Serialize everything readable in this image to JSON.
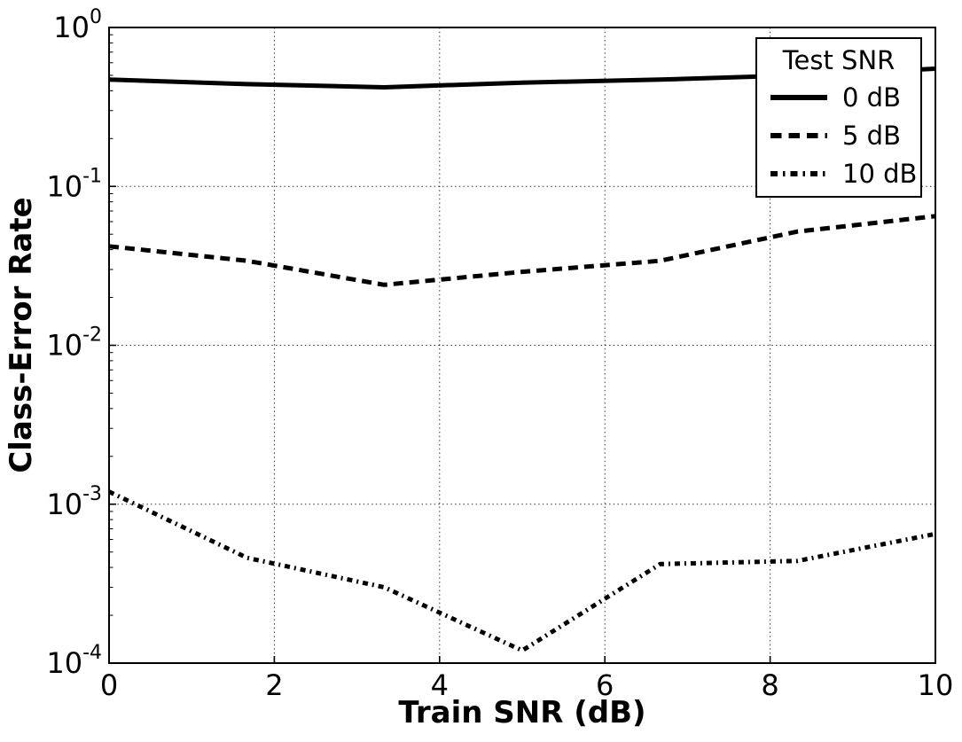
{
  "figure": {
    "background": "#ffffff",
    "line_color": "#000000",
    "grid_style": "dotted"
  },
  "chart_data": {
    "type": "line",
    "title": "",
    "xlabel": "Train SNR (dB)",
    "ylabel": "Class-Error Rate",
    "xscale": "linear",
    "yscale": "log",
    "xlim": [
      0,
      10
    ],
    "ylim": [
      0.0001,
      1
    ],
    "xticks": [
      0,
      2,
      4,
      6,
      8,
      10
    ],
    "yticks": [
      {
        "base": "10",
        "exp": "0"
      },
      {
        "base": "10",
        "exp": "-1"
      },
      {
        "base": "10",
        "exp": "-2"
      },
      {
        "base": "10",
        "exp": "-3"
      },
      {
        "base": "10",
        "exp": "-4"
      }
    ],
    "grid": "dotted",
    "legend": {
      "title": "Test SNR",
      "position": "upper right"
    },
    "x": [
      0,
      1.67,
      3.33,
      5,
      6.67,
      8.33,
      10
    ],
    "series": [
      {
        "name": "0 dB",
        "style": "solid",
        "color": "#000000",
        "values": [
          0.47,
          0.44,
          0.42,
          0.45,
          0.47,
          0.5,
          0.55
        ]
      },
      {
        "name": "5 dB",
        "style": "dashed",
        "color": "#000000",
        "values": [
          0.042,
          0.034,
          0.024,
          0.029,
          0.034,
          0.052,
          0.065
        ]
      },
      {
        "name": "10 dB",
        "style": "dashdot",
        "color": "#000000",
        "values": [
          0.0012,
          0.00046,
          0.0003,
          0.00012,
          0.00042,
          0.00044,
          0.00065
        ]
      }
    ]
  }
}
